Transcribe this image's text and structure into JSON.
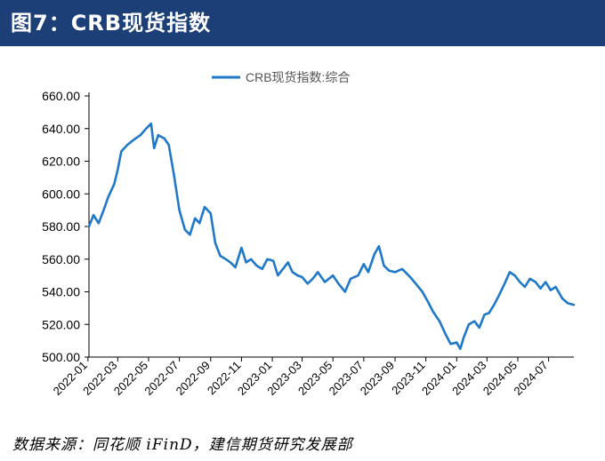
{
  "header": {
    "title": "图7：CRB现货指数"
  },
  "footer": {
    "source": "数据来源：同花顺 iFinD，建信期货研究发展部"
  },
  "colors": {
    "banner": "#1c3f78",
    "line": "#1f78c8",
    "axis": "#000000"
  },
  "chart_data": {
    "type": "line",
    "title": "",
    "xlabel": "",
    "ylabel": "",
    "legend": {
      "position": "top-center"
    },
    "grid": false,
    "ylim": [
      500,
      660
    ],
    "y_ticks": [
      "660.00",
      "640.00",
      "620.00",
      "600.00",
      "580.00",
      "560.00",
      "540.00",
      "520.00",
      "500.00"
    ],
    "x_ticks": [
      "2022-01",
      "2022-03",
      "2022-05",
      "2022-07",
      "2022-09",
      "2022-11",
      "2023-01",
      "2023-03",
      "2023-05",
      "2023-07",
      "2023-09",
      "2023-11",
      "2024-01",
      "2024-03",
      "2024-05",
      "2024-07"
    ],
    "x_range": [
      "2022-01-03",
      "2024-08-20"
    ],
    "series": [
      {
        "name": "CRB现货指数:综合",
        "points": [
          [
            "2022-01-03",
            580
          ],
          [
            "2022-01-12",
            587
          ],
          [
            "2022-01-22",
            582
          ],
          [
            "2022-02-01",
            590
          ],
          [
            "2022-02-10",
            598
          ],
          [
            "2022-02-22",
            606
          ],
          [
            "2022-03-01",
            615
          ],
          [
            "2022-03-08",
            626
          ],
          [
            "2022-03-20",
            630
          ],
          [
            "2022-04-01",
            633
          ],
          [
            "2022-04-15",
            636
          ],
          [
            "2022-04-26",
            640
          ],
          [
            "2022-05-06",
            643
          ],
          [
            "2022-05-12",
            628
          ],
          [
            "2022-05-20",
            636
          ],
          [
            "2022-06-01",
            634
          ],
          [
            "2022-06-10",
            630
          ],
          [
            "2022-06-20",
            612
          ],
          [
            "2022-07-01",
            590
          ],
          [
            "2022-07-12",
            578
          ],
          [
            "2022-07-22",
            575
          ],
          [
            "2022-08-01",
            585
          ],
          [
            "2022-08-10",
            582
          ],
          [
            "2022-08-20",
            592
          ],
          [
            "2022-09-01",
            588
          ],
          [
            "2022-09-10",
            570
          ],
          [
            "2022-09-20",
            562
          ],
          [
            "2022-10-01",
            560
          ],
          [
            "2022-10-10",
            558
          ],
          [
            "2022-10-20",
            555
          ],
          [
            "2022-11-01",
            567
          ],
          [
            "2022-11-10",
            558
          ],
          [
            "2022-11-20",
            560
          ],
          [
            "2022-12-01",
            556
          ],
          [
            "2022-12-12",
            554
          ],
          [
            "2022-12-22",
            560
          ],
          [
            "2023-01-03",
            559
          ],
          [
            "2023-01-12",
            550
          ],
          [
            "2023-01-22",
            554
          ],
          [
            "2023-02-01",
            558
          ],
          [
            "2023-02-10",
            552
          ],
          [
            "2023-02-20",
            550
          ],
          [
            "2023-03-01",
            549
          ],
          [
            "2023-03-12",
            545
          ],
          [
            "2023-03-22",
            548
          ],
          [
            "2023-04-01",
            552
          ],
          [
            "2023-04-15",
            546
          ],
          [
            "2023-05-01",
            550
          ],
          [
            "2023-05-12",
            545
          ],
          [
            "2023-05-25",
            540
          ],
          [
            "2023-06-05",
            548
          ],
          [
            "2023-06-20",
            550
          ],
          [
            "2023-07-01",
            557
          ],
          [
            "2023-07-10",
            552
          ],
          [
            "2023-07-22",
            563
          ],
          [
            "2023-07-31",
            568
          ],
          [
            "2023-08-10",
            556
          ],
          [
            "2023-08-20",
            553
          ],
          [
            "2023-09-01",
            552
          ],
          [
            "2023-09-15",
            554
          ],
          [
            "2023-10-01",
            549
          ],
          [
            "2023-10-12",
            545
          ],
          [
            "2023-10-25",
            540
          ],
          [
            "2023-11-05",
            534
          ],
          [
            "2023-11-15",
            528
          ],
          [
            "2023-11-28",
            522
          ],
          [
            "2023-12-10",
            514
          ],
          [
            "2023-12-20",
            508
          ],
          [
            "2024-01-01",
            509
          ],
          [
            "2024-01-08",
            505
          ],
          [
            "2024-01-15",
            512
          ],
          [
            "2024-01-25",
            520
          ],
          [
            "2024-02-05",
            522
          ],
          [
            "2024-02-15",
            518
          ],
          [
            "2024-02-25",
            526
          ],
          [
            "2024-03-05",
            527
          ],
          [
            "2024-03-15",
            532
          ],
          [
            "2024-03-25",
            538
          ],
          [
            "2024-04-05",
            545
          ],
          [
            "2024-04-15",
            552
          ],
          [
            "2024-04-25",
            550
          ],
          [
            "2024-05-05",
            546
          ],
          [
            "2024-05-15",
            543
          ],
          [
            "2024-05-25",
            548
          ],
          [
            "2024-06-05",
            546
          ],
          [
            "2024-06-15",
            542
          ],
          [
            "2024-06-25",
            546
          ],
          [
            "2024-07-05",
            541
          ],
          [
            "2024-07-15",
            543
          ],
          [
            "2024-07-28",
            536
          ],
          [
            "2024-08-08",
            533
          ],
          [
            "2024-08-20",
            532
          ]
        ]
      }
    ]
  }
}
